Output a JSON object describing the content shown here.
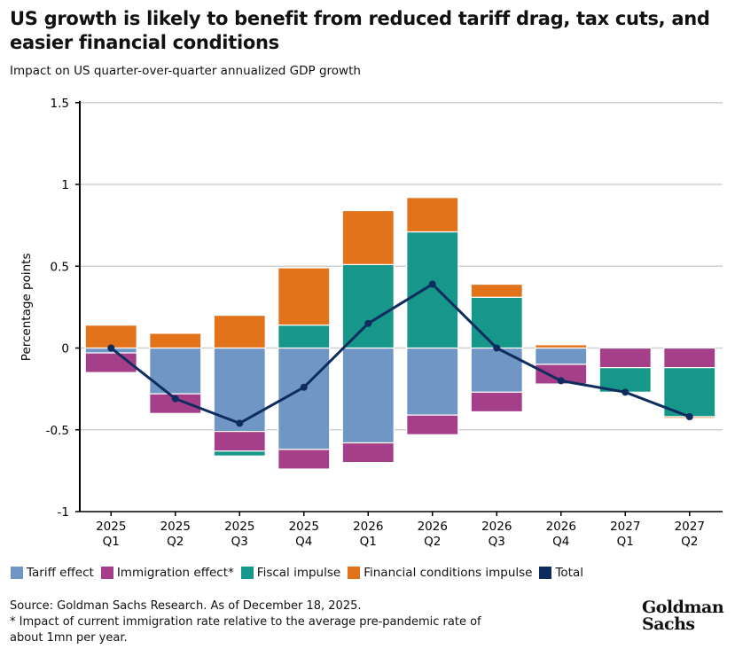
{
  "chart_data": {
    "type": "bar",
    "stacked": true,
    "title": "US growth is likely to benefit from reduced tariff drag, tax cuts, and easier financial conditions",
    "subtitle": "Impact on US quarter-over-quarter annualized GDP growth",
    "ylabel": "Percentage points",
    "ylim": [
      -1,
      1.5
    ],
    "yticks": [
      "-1",
      "-0.5",
      "0",
      "0.5",
      "1",
      "1.5"
    ],
    "ytick_values": [
      -1,
      -0.5,
      0,
      0.5,
      1,
      1.5
    ],
    "grid": true,
    "legend_position": "bottom",
    "categories": [
      [
        "2025",
        "Q1"
      ],
      [
        "2025",
        "Q2"
      ],
      [
        "2025",
        "Q3"
      ],
      [
        "2025",
        "Q4"
      ],
      [
        "2026",
        "Q1"
      ],
      [
        "2026",
        "Q2"
      ],
      [
        "2026",
        "Q3"
      ],
      [
        "2026",
        "Q4"
      ],
      [
        "2027",
        "Q1"
      ],
      [
        "2027",
        "Q2"
      ]
    ],
    "series": [
      {
        "name": "Tariff effect",
        "color": "#7096c6",
        "values": [
          -0.03,
          -0.28,
          -0.51,
          -0.62,
          -0.58,
          -0.41,
          -0.27,
          -0.1,
          0,
          0
        ]
      },
      {
        "name": "Immigration effect*",
        "color": "#a63f8a",
        "values": [
          -0.12,
          -0.12,
          -0.12,
          -0.12,
          -0.12,
          -0.12,
          -0.12,
          -0.12,
          -0.12,
          -0.12
        ]
      },
      {
        "name": "Fiscal impulse",
        "color": "#16978a",
        "values": [
          0,
          0,
          -0.03,
          0.14,
          0.51,
          0.71,
          0.31,
          0,
          -0.15,
          -0.3
        ]
      },
      {
        "name": "Financial conditions impulse",
        "color": "#e2731b",
        "values": [
          0.14,
          0.09,
          0.2,
          0.35,
          0.33,
          0.21,
          0.08,
          0.02,
          0,
          -0.01
        ]
      }
    ],
    "line": {
      "name": "Total",
      "color": "#0e2d5e",
      "values": [
        0,
        -0.31,
        -0.46,
        -0.24,
        0.15,
        0.39,
        0,
        -0.2,
        -0.27,
        -0.42
      ]
    }
  },
  "source": "Source: Goldman Sachs Research. As of December 18, 2025.",
  "footnote": "* Impact of current immigration rate relative to the average pre-pandemic rate of about 1mn per year.",
  "logo": "Goldman Sachs"
}
